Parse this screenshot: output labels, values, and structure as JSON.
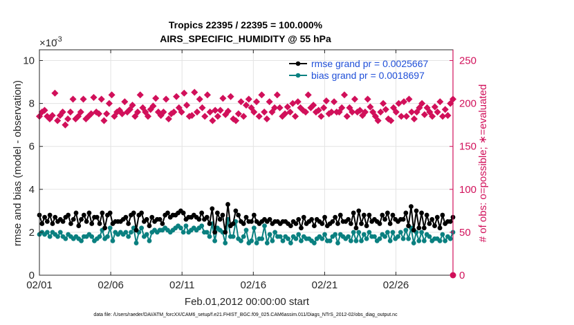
{
  "chart_data": {
    "type": "line",
    "title_line1": "Tropics 22395 / 22395 = 100.000%",
    "title_line2": "AIRS_SPECIFIC_HUMIDITY @ 55 hPa",
    "left_ylabel": "rmse and bias (model - observation)",
    "right_ylabel": "# of obs: o=possible; ∗=evaluated",
    "xlabel": "Feb.01,2012 00:00:00 start",
    "exponent_label": "×10",
    "exponent_power": "-3",
    "footer": "data file: /Users/raeder/DAI/ATM_forcXX/CAM6_setup/f.e21.FHIST_BGC.f09_025.CAM6assim.011/Diags_NTrS_2012-02/obs_diag_output.nc",
    "x_ticks": [
      "02/01",
      "02/06",
      "02/11",
      "02/16",
      "02/21",
      "02/26"
    ],
    "x_range_days": [
      0,
      29
    ],
    "left_ylim_e3": [
      0,
      10.5
    ],
    "left_ticks": [
      "0",
      "2",
      "4",
      "6",
      "8",
      "10"
    ],
    "right_ylim": [
      0,
      262.5
    ],
    "right_ticks": [
      "0",
      "50",
      "100",
      "150",
      "200",
      "250"
    ],
    "colors": {
      "rmse": "#000000",
      "bias": "#0a8080",
      "obs": "#d1105a",
      "axis": "#262626",
      "legend_text": "#1f4fd8",
      "grid": "#e3e3e3"
    },
    "series": [
      {
        "name": "rmse grand pr = 0.0025667",
        "values_e3": [
          2.8,
          2.4,
          2.7,
          2.5,
          2.8,
          2.4,
          2.7,
          2.5,
          2.6,
          2.5,
          2.7,
          2.8,
          2.4,
          2.6,
          2.9,
          2.3,
          2.6,
          2.8,
          2.5,
          2.9,
          2.4,
          2.7,
          2.7,
          2.4,
          2.9,
          2.2,
          2.8,
          2.9,
          2.4,
          2.5,
          2.5,
          2.5,
          2.6,
          2.7,
          2.4,
          2.8,
          2.9,
          2.1,
          2.8,
          2.9,
          2.5,
          2.6,
          2.3,
          2.7,
          2.5,
          2.6,
          2.6,
          2.4,
          2.8,
          2.9,
          2.7,
          2.8,
          2.8,
          2.9,
          3.0,
          2.9,
          2.6,
          2.7,
          2.7,
          2.8,
          2.7,
          2.6,
          2.9,
          2.6,
          2.7,
          2.4,
          3.1,
          2.0,
          2.9,
          2.6,
          2.8,
          2.0,
          3.3,
          2.3,
          2.4,
          3.0,
          2.8,
          2.5,
          2.4,
          2.7,
          2.5,
          2.5,
          2.8,
          2.5,
          2.4,
          2.5,
          2.6,
          2.5,
          2.6,
          2.4,
          2.5,
          2.5,
          2.4,
          2.5,
          2.5,
          2.4,
          2.3,
          2.5,
          2.4,
          2.6,
          2.2,
          2.7,
          2.4,
          2.5,
          2.6,
          2.3,
          2.6,
          2.5,
          2.4,
          2.7,
          2.3,
          2.4,
          2.5,
          2.7,
          2.4,
          2.8,
          2.5,
          2.5,
          2.6,
          2.4,
          2.9,
          2.2,
          3.0,
          2.4,
          2.8,
          2.3,
          2.8,
          2.5,
          2.6,
          2.5,
          2.4,
          2.8,
          2.6,
          2.9,
          2.4,
          2.8,
          2.6,
          2.5,
          2.6,
          2.6,
          2.9,
          2.3,
          3.2,
          2.1,
          3.0,
          2.2,
          2.9,
          2.2,
          2.8,
          2.4,
          2.6,
          2.3,
          2.7,
          2.2,
          2.8,
          2.4,
          2.5,
          2.5,
          2.7
        ]
      },
      {
        "name": "bias grand pr = 0.0018697",
        "values_e3": [
          1.9,
          2.0,
          1.9,
          2.0,
          1.8,
          2.0,
          1.9,
          1.8,
          2.0,
          1.8,
          1.7,
          1.9,
          1.8,
          1.7,
          1.8,
          1.7,
          1.6,
          1.8,
          1.8,
          1.9,
          1.8,
          1.6,
          1.7,
          1.8,
          2.1,
          1.7,
          1.8,
          2.2,
          1.6,
          2.0,
          1.9,
          2.0,
          1.9,
          2.0,
          1.8,
          2.0,
          2.2,
          1.5,
          2.0,
          2.2,
          1.8,
          1.9,
          1.6,
          2.0,
          2.1,
          2.0,
          2.1,
          2.1,
          2.2,
          2.1,
          2.0,
          2.1,
          2.2,
          2.3,
          2.2,
          2.0,
          2.3,
          2.0,
          2.1,
          2.2,
          2.1,
          2.2,
          2.3,
          2.0,
          2.0,
          1.8,
          2.4,
          1.6,
          2.2,
          2.1,
          2.0,
          1.5,
          2.6,
          1.8,
          1.8,
          2.5,
          1.7,
          1.6,
          1.8,
          2.1,
          1.5,
          1.6,
          2.2,
          1.5,
          1.7,
          1.7,
          2.3,
          1.5,
          1.9,
          1.6,
          2.0,
          1.8,
          1.8,
          1.6,
          1.8,
          1.7,
          1.5,
          1.8,
          1.7,
          1.9,
          1.6,
          1.8,
          1.7,
          1.7,
          1.6,
          1.5,
          1.7,
          1.8,
          1.7,
          1.9,
          1.6,
          1.6,
          1.8,
          1.9,
          1.5,
          1.9,
          1.8,
          1.7,
          1.8,
          1.6,
          2.0,
          1.6,
          2.0,
          1.6,
          1.9,
          1.7,
          2.0,
          1.8,
          1.8,
          1.6,
          1.7,
          1.9,
          1.8,
          2.0,
          1.6,
          2.0,
          1.7,
          1.8,
          2.0,
          1.7,
          2.1,
          1.7,
          2.2,
          1.5,
          2.0,
          1.6,
          2.0,
          1.6,
          1.9,
          1.8,
          1.6,
          1.7,
          1.7,
          1.6,
          1.9,
          1.6,
          1.8,
          1.7,
          2.0
        ]
      },
      {
        "name": "obs count evaluated",
        "values": [
          185,
          190,
          192,
          185,
          182,
          186,
          212,
          180,
          186,
          190,
          175,
          182,
          190,
          205,
          182,
          185,
          190,
          205,
          182,
          185,
          188,
          207,
          190,
          188,
          205,
          180,
          188,
          200,
          210,
          185,
          190,
          192,
          188,
          202,
          190,
          193,
          198,
          185,
          190,
          210,
          195,
          190,
          185,
          193,
          197,
          206,
          190,
          186,
          190,
          205,
          182,
          188,
          190,
          208,
          195,
          190,
          212,
          198,
          185,
          186,
          213,
          190,
          205,
          195,
          185,
          210,
          190,
          180,
          192,
          185,
          192,
          206,
          187,
          191,
          208,
          182,
          180,
          188,
          202,
          185,
          198,
          205,
          195,
          190,
          202,
          185,
          210,
          190,
          182,
          202,
          190,
          195,
          210,
          195,
          185,
          188,
          196,
          190,
          200,
          185,
          202,
          195,
          192,
          190,
          210,
          195,
          198,
          190,
          192,
          185,
          195,
          203,
          188,
          190,
          202,
          190,
          190,
          195,
          210,
          185,
          195,
          190,
          205,
          190,
          192,
          186,
          190,
          205,
          196,
          190,
          185,
          180,
          190,
          200,
          193,
          182,
          180,
          195,
          190,
          200,
          185,
          202,
          185,
          205,
          190,
          182,
          190,
          195,
          200,
          187,
          195,
          190,
          185,
          196,
          190,
          202,
          185,
          193,
          186,
          200,
          205
        ]
      },
      {
        "name": "obs count possible",
        "values": [
          0
        ]
      }
    ]
  }
}
